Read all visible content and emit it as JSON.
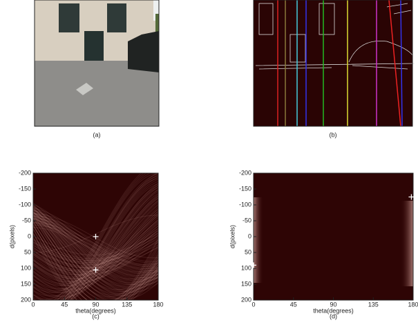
{
  "panels": [
    {
      "caption": "(a)"
    },
    {
      "caption": "(b)"
    }
  ],
  "chart_data": [
    {
      "type": "hough",
      "caption": "(c)",
      "x_label": "theta(degrees)",
      "y_label": "d(pixels)",
      "xlim": [
        0,
        180
      ],
      "ylim": [
        -200,
        200
      ],
      "xticks": [
        0,
        45,
        90,
        135,
        180
      ],
      "yticks": [
        -200,
        -150,
        -100,
        -50,
        0,
        50,
        100,
        150,
        200
      ],
      "y_reversed": true,
      "points": {
        "x": [
          90,
          90
        ],
        "y": [
          0,
          105
        ]
      }
    },
    {
      "type": "hough",
      "caption": "(d)",
      "x_label": "theta(degrees)",
      "y_label": "d(pixels)",
      "xlim": [
        0,
        180
      ],
      "ylim": [
        -200,
        200
      ],
      "xticks": [
        0,
        45,
        90,
        135,
        180
      ],
      "yticks": [
        -200,
        -150,
        -100,
        -50,
        0,
        50,
        100,
        150,
        200
      ],
      "y_reversed": true,
      "points": {
        "x": [
          178,
          0
        ],
        "y": [
          -125,
          90
        ]
      }
    }
  ]
}
